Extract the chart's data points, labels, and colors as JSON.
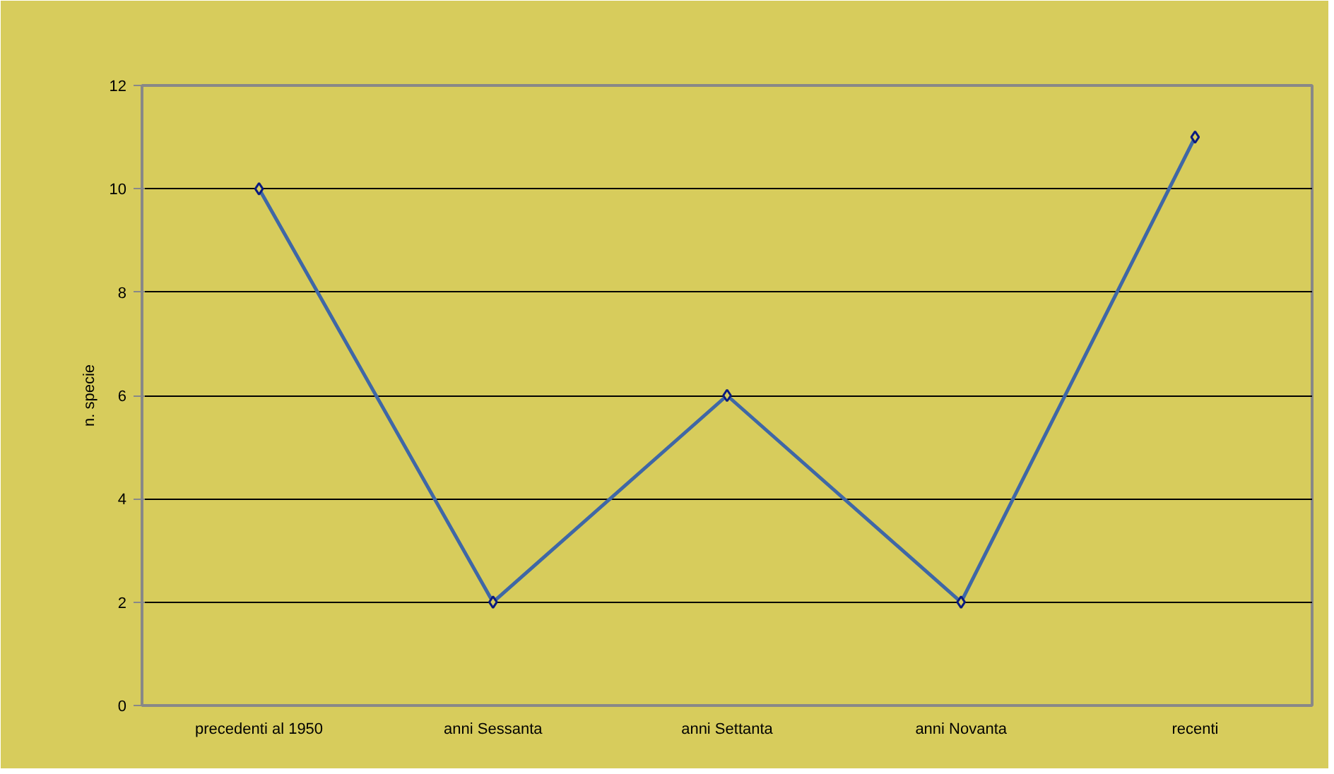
{
  "chart_data": {
    "type": "line",
    "ylabel": "n. specie",
    "categories": [
      "precedenti al 1950",
      "anni Sessanta",
      "anni Settanta",
      "anni Novanta",
      "recenti"
    ],
    "series": [
      {
        "color": "#3f67a6",
        "values": [
          10,
          2,
          6,
          2,
          11
        ]
      }
    ],
    "ylim": [
      0,
      12
    ],
    "yticks": [
      0,
      2,
      4,
      6,
      8,
      10,
      12
    ],
    "grid": "y",
    "marker": "diamond",
    "line_style": "solid"
  }
}
